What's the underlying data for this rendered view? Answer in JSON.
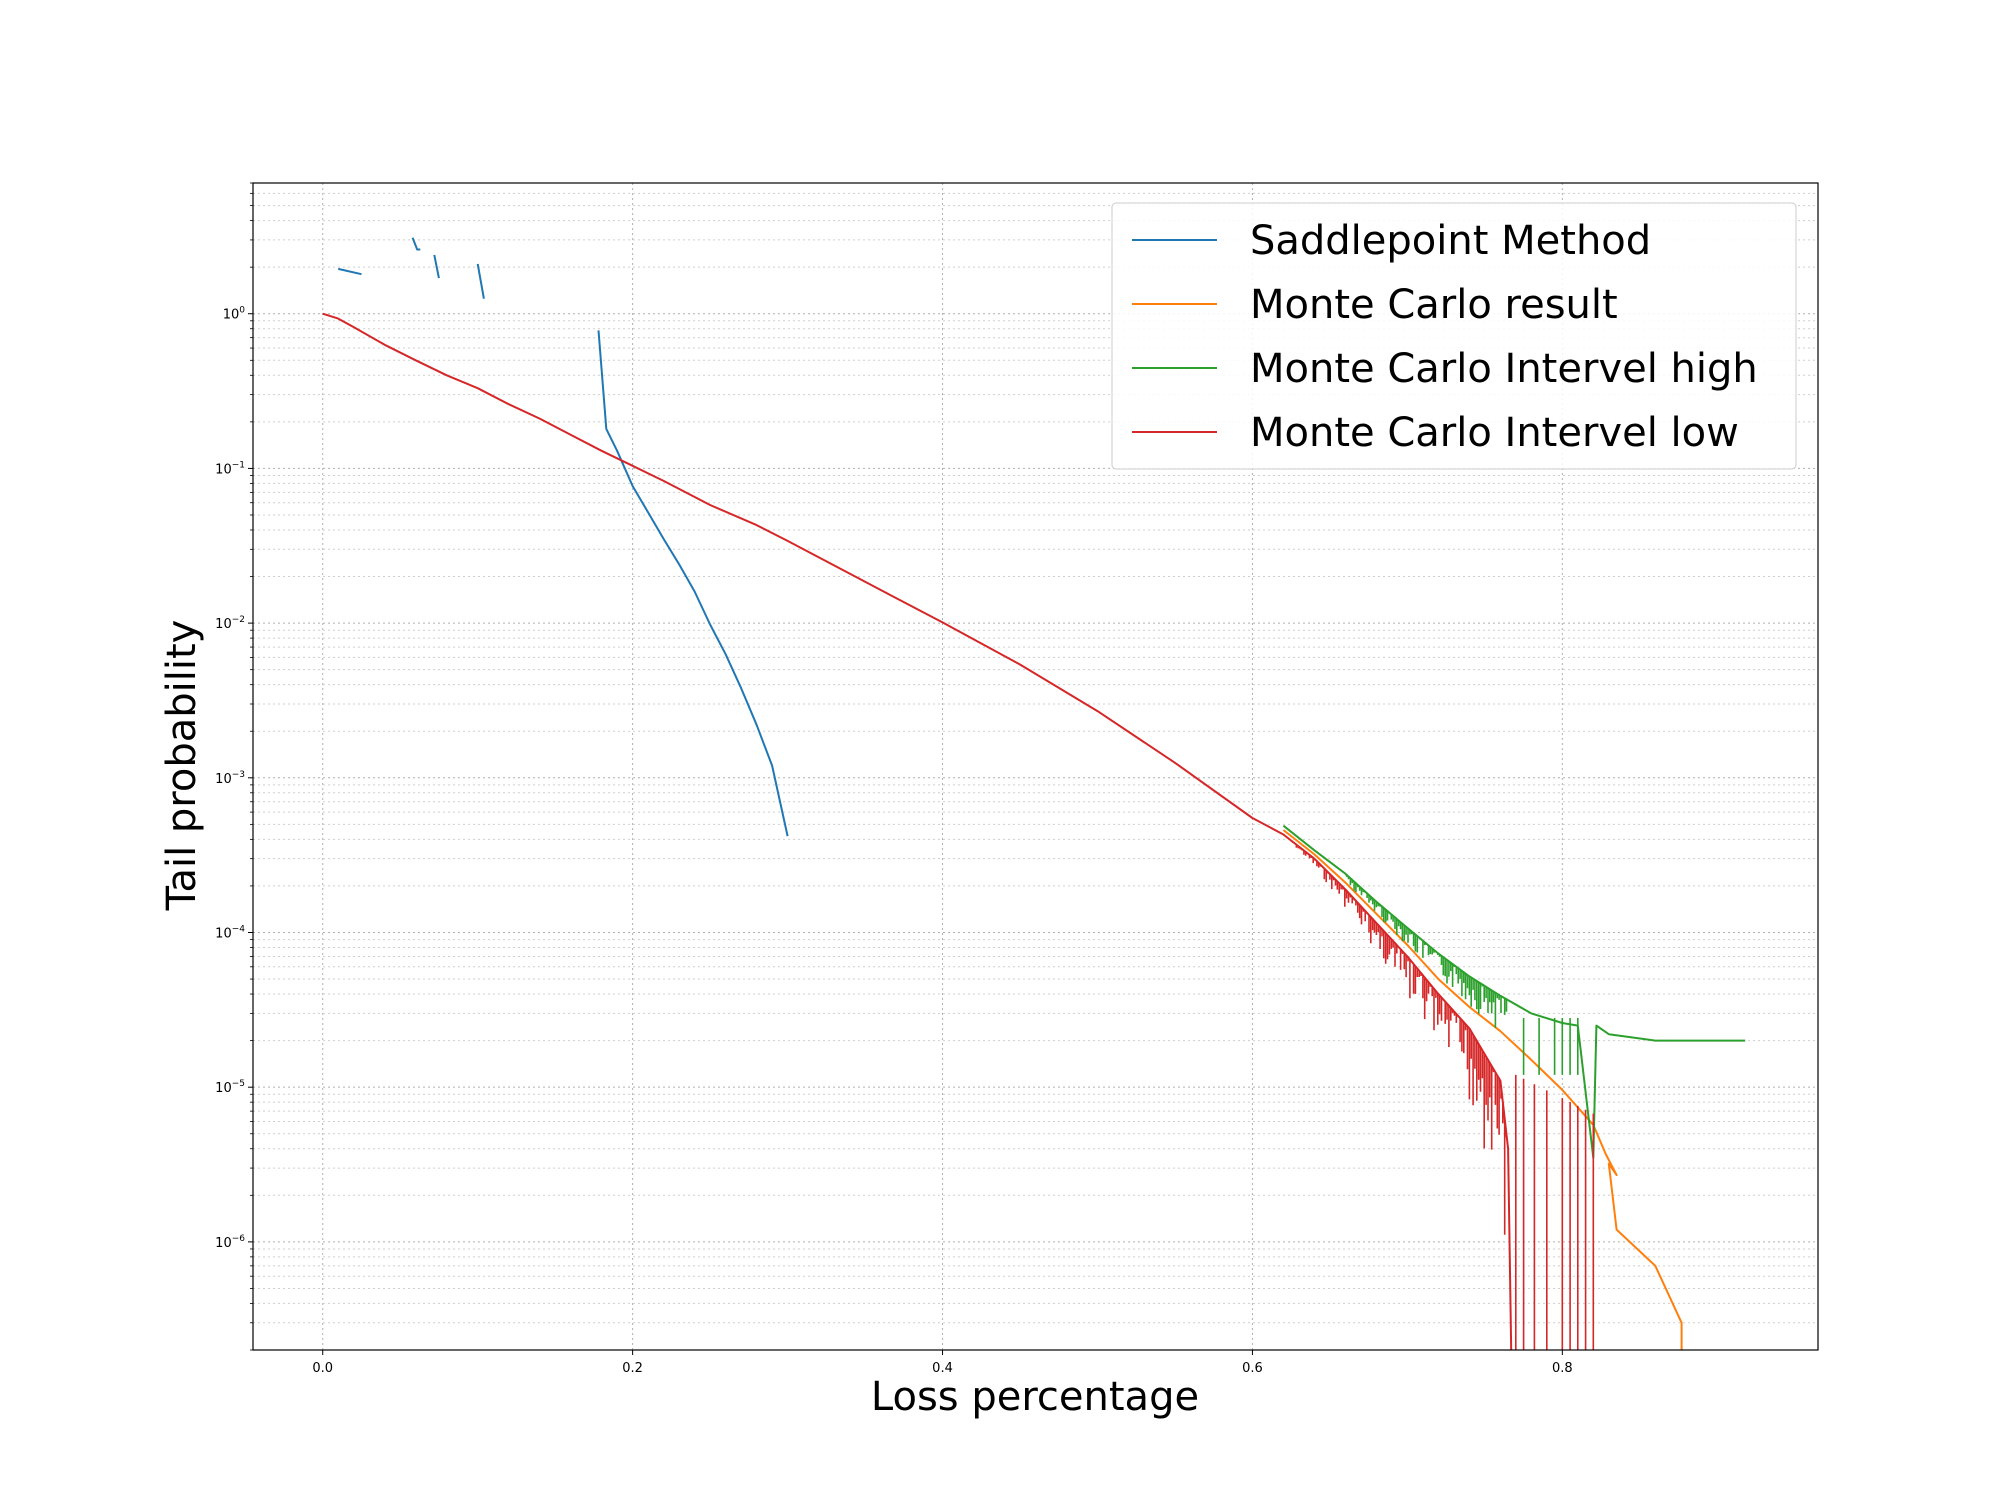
{
  "chart_data": {
    "type": "line",
    "xlabel": "Loss percentage",
    "ylabel": "Tail probability",
    "x_ticks": [
      0.0,
      0.2,
      0.4,
      0.6,
      0.8
    ],
    "x_tick_labels": [
      "0.0",
      "0.2",
      "0.4",
      "0.6",
      "0.8"
    ],
    "xlim": [
      -0.045,
      0.965
    ],
    "y_scale": "log",
    "ylim": [
      2e-07,
      7
    ],
    "y_ticks": [
      1,
      0.1,
      0.01,
      0.001,
      0.0001,
      1e-05,
      1e-06
    ],
    "y_tick_labels": [
      {
        "base": "10",
        "exp": "0"
      },
      {
        "base": "10",
        "exp": "−1"
      },
      {
        "base": "10",
        "exp": "−2"
      },
      {
        "base": "10",
        "exp": "−3"
      },
      {
        "base": "10",
        "exp": "−4"
      },
      {
        "base": "10",
        "exp": "−5"
      },
      {
        "base": "10",
        "exp": "−6"
      }
    ],
    "grid": true,
    "legend_position": "top-right",
    "series": [
      {
        "name": "Saddlepoint Method",
        "color": "#1f77b4",
        "segments": [
          [
            [
              0.01,
              1.95
            ],
            [
              0.025,
              1.8
            ]
          ],
          [
            [
              0.058,
              3.1
            ],
            [
              0.061,
              2.6
            ],
            [
              0.063,
              2.6
            ]
          ],
          [
            [
              0.072,
              2.4
            ],
            [
              0.075,
              1.7
            ]
          ],
          [
            [
              0.1,
              2.1
            ],
            [
              0.104,
              1.25
            ]
          ],
          [
            [
              0.178,
              0.78
            ],
            [
              0.183,
              0.18
            ],
            [
              0.19,
              0.13
            ],
            [
              0.2,
              0.077
            ],
            [
              0.21,
              0.052
            ],
            [
              0.22,
              0.035
            ],
            [
              0.23,
              0.024
            ],
            [
              0.24,
              0.016
            ],
            [
              0.25,
              0.0098
            ],
            [
              0.26,
              0.0063
            ],
            [
              0.27,
              0.0038
            ],
            [
              0.28,
              0.0022
            ],
            [
              0.29,
              0.0012
            ],
            [
              0.3,
              0.00042
            ]
          ]
        ]
      },
      {
        "name": "Monte Carlo result",
        "color": "#ff7f0e",
        "points": [
          [
            0.62,
            0.00046
          ],
          [
            0.64,
            0.00032
          ],
          [
            0.66,
            0.00021
          ],
          [
            0.68,
            0.000132
          ],
          [
            0.7,
            8.3e-05
          ],
          [
            0.72,
            5e-05
          ],
          [
            0.74,
            3.3e-05
          ],
          [
            0.76,
            2.3e-05
          ],
          [
            0.78,
            1.5e-05
          ],
          [
            0.8,
            9.6e-06
          ],
          [
            0.82,
            5.7e-06
          ],
          [
            0.828,
            3.7e-06
          ],
          [
            0.835,
            2.7e-06
          ],
          [
            0.83,
            3.2e-06
          ],
          [
            0.835,
            1.2e-06
          ],
          [
            0.86,
            7e-07
          ],
          [
            0.877,
            3e-07
          ],
          [
            0.877,
            2e-07
          ]
        ]
      },
      {
        "name": "Monte Carlo Intervel high",
        "color": "#2ca02c",
        "points": [
          [
            0.62,
            0.00049
          ],
          [
            0.64,
            0.00034
          ],
          [
            0.66,
            0.00024
          ],
          [
            0.68,
            0.000158
          ],
          [
            0.7,
            0.000107
          ],
          [
            0.72,
            7.3e-05
          ],
          [
            0.74,
            5.2e-05
          ],
          [
            0.76,
            3.9e-05
          ],
          [
            0.78,
            3e-05
          ],
          [
            0.8,
            2.6e-05
          ],
          [
            0.81,
            2.5e-05
          ],
          [
            0.82,
            3.5e-06
          ],
          [
            0.822,
            2.5e-05
          ],
          [
            0.83,
            2.2e-05
          ],
          [
            0.86,
            2e-05
          ],
          [
            0.918,
            2e-05
          ]
        ]
      },
      {
        "name": "Monte Carlo Intervel low",
        "color": "#d62728",
        "points": [
          [
            0.0,
            1.0
          ],
          [
            0.01,
            0.93
          ],
          [
            0.02,
            0.82
          ],
          [
            0.04,
            0.63
          ],
          [
            0.06,
            0.5
          ],
          [
            0.08,
            0.4
          ],
          [
            0.1,
            0.33
          ],
          [
            0.12,
            0.26
          ],
          [
            0.14,
            0.21
          ],
          [
            0.16,
            0.165
          ],
          [
            0.18,
            0.13
          ],
          [
            0.2,
            0.104
          ],
          [
            0.22,
            0.083
          ],
          [
            0.25,
            0.058
          ],
          [
            0.28,
            0.043
          ],
          [
            0.3,
            0.034
          ],
          [
            0.35,
            0.0185
          ],
          [
            0.4,
            0.0101
          ],
          [
            0.45,
            0.0054
          ],
          [
            0.5,
            0.0027
          ],
          [
            0.55,
            0.00125
          ],
          [
            0.6,
            0.00055
          ],
          [
            0.62,
            0.00043
          ],
          [
            0.64,
            0.0003
          ],
          [
            0.66,
            0.00019
          ],
          [
            0.68,
            0.000115
          ],
          [
            0.7,
            7e-05
          ],
          [
            0.72,
            4e-05
          ],
          [
            0.74,
            2.4e-05
          ],
          [
            0.76,
            1.1e-05
          ],
          [
            0.765,
            4e-06
          ],
          [
            0.767,
            2e-07
          ]
        ]
      }
    ]
  }
}
